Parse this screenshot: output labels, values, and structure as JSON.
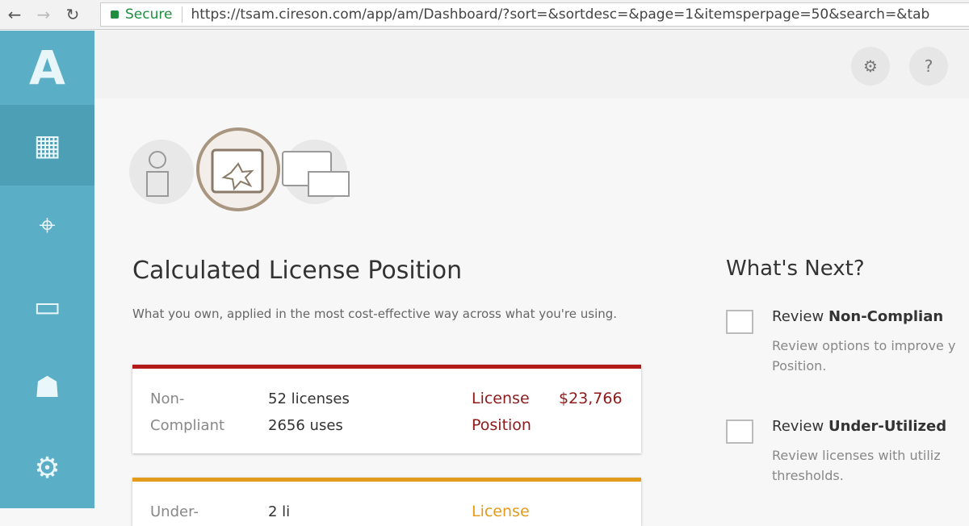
{
  "browser": {
    "secure_label": "Secure",
    "url": "https://tsam.cireson.com/app/am/Dashboard/?sort=&sortdesc=&page=1&itemsperpage=50&search=&tab"
  },
  "sidebar": {
    "logo": "A",
    "items": [
      {
        "icon": "dashboard-icon"
      },
      {
        "icon": "location-icon"
      },
      {
        "icon": "laptop-icon"
      },
      {
        "icon": "users-icon"
      },
      {
        "icon": "software-icon"
      }
    ]
  },
  "header": {
    "settings_icon": "gear-icon",
    "help_label": "?"
  },
  "main": {
    "title": "Calculated License Position",
    "subtitle": "What you own, applied in the most cost-effective way across what you're using.",
    "cards": [
      {
        "label": "Non-Compliant",
        "licenses": "52 licenses",
        "uses": "2656 uses",
        "position_label": "License Position",
        "amount": "$23,766",
        "color": "#b31b1b"
      },
      {
        "label": "Under-",
        "licenses": "2 li",
        "position_label": "License",
        "color": "#e39b1c"
      }
    ]
  },
  "next": {
    "title": "What's Next?",
    "tasks": [
      {
        "prefix": "Review ",
        "bold": "Non-Complian",
        "desc1": "Review options to improve y",
        "desc2": "Position."
      },
      {
        "prefix": "Review ",
        "bold": "Under-Utilized",
        "desc1": "Review licenses with utiliz",
        "desc2": "thresholds."
      }
    ]
  }
}
